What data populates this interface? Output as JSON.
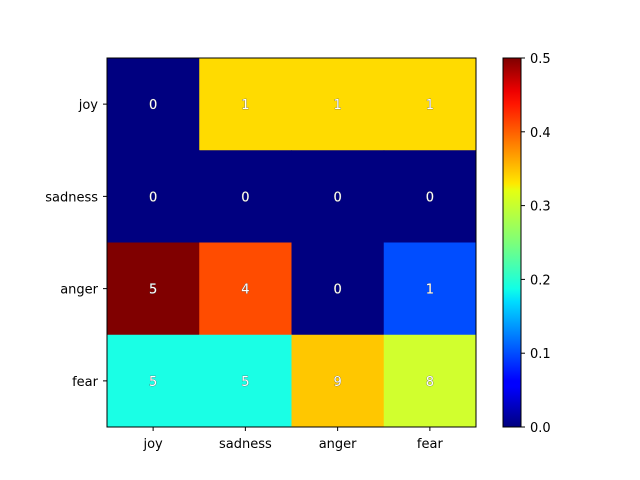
{
  "chart_data": {
    "type": "heatmap",
    "title": "",
    "xlabel": "",
    "ylabel": "",
    "x_categories": [
      "joy",
      "sadness",
      "anger",
      "fear"
    ],
    "y_categories": [
      "joy",
      "sadness",
      "anger",
      "fear"
    ],
    "color_values": [
      [
        0.0,
        0.33,
        0.33,
        0.33
      ],
      [
        0.0,
        0.0,
        0.0,
        0.0
      ],
      [
        0.5,
        0.4,
        0.0,
        0.1
      ],
      [
        0.2,
        0.2,
        0.34,
        0.29
      ]
    ],
    "cell_labels": [
      [
        "0",
        "1",
        "1",
        "1"
      ],
      [
        "0",
        "0",
        "0",
        "0"
      ],
      [
        "5",
        "4",
        "0",
        "1"
      ],
      [
        "5",
        "5",
        "9",
        "8"
      ]
    ],
    "colormap": "jet",
    "colorbar": {
      "range": [
        0.0,
        0.5
      ],
      "ticks": [
        "0.0",
        "0.1",
        "0.2",
        "0.3",
        "0.4",
        "0.5"
      ]
    }
  }
}
